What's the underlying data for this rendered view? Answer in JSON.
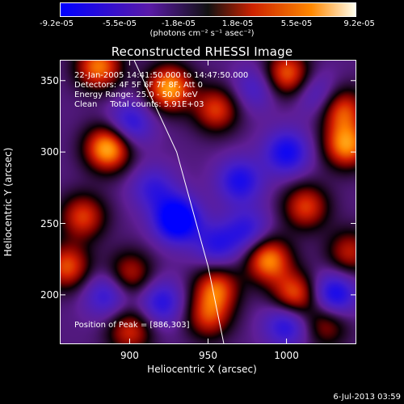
{
  "colorbar": {
    "ticks": [
      "-9.2e-05",
      "-5.5e-05",
      "-1.8e-05",
      "1.8e-05",
      "5.5e-05",
      "9.2e-05"
    ],
    "unit_label": "(photons cm⁻² s⁻¹ asec⁻²)",
    "colors": [
      "#0000ff",
      "#5a1aa8",
      "#111111",
      "#cc2200",
      "#ff8800",
      "#ffffee"
    ]
  },
  "annotations": {
    "time_range": "22-Jan-2005 14:41:50.000 to 14:47:50.000",
    "detectors": "Detectors: 4F 5F 6F 7F 8F, Att 0",
    "energy": "Energy Range: 25.0 - 50.0 keV",
    "clean": "Clean     Total counts: 5.91E+03",
    "peak": "Position of Peak = [886,303]"
  },
  "timestamp": "6-Jul-2013 03:59",
  "chart_data": {
    "type": "heatmap",
    "title": "Reconstructed RHESSI Image",
    "xlabel": "Heliocentric X (arcsec)",
    "ylabel": "Heliocentric Y (arcsec)",
    "xlim": [
      856,
      1044
    ],
    "ylim": [
      166,
      364
    ],
    "xticks": [
      900,
      950,
      1000
    ],
    "yticks": [
      200,
      250,
      300,
      350
    ],
    "zlim": [
      -9.2e-05,
      9.2e-05
    ],
    "limb_line": [
      [
        903,
        364
      ],
      [
        930,
        300
      ],
      [
        950,
        220
      ],
      [
        960,
        166
      ]
    ],
    "peak_position": [
      886,
      303
    ],
    "sources": [
      {
        "x": 886,
        "y": 303,
        "value": 9.2e-05
      },
      {
        "x": 880,
        "y": 360,
        "value": 7.5e-05
      },
      {
        "x": 925,
        "y": 345,
        "value": 8.5e-05
      },
      {
        "x": 955,
        "y": 330,
        "value": 6e-05
      },
      {
        "x": 1000,
        "y": 355,
        "value": 7e-05
      },
      {
        "x": 1038,
        "y": 305,
        "value": 8e-05
      },
      {
        "x": 1035,
        "y": 330,
        "value": 6.5e-05
      },
      {
        "x": 1012,
        "y": 262,
        "value": 6e-05
      },
      {
        "x": 988,
        "y": 225,
        "value": 8e-05
      },
      {
        "x": 1005,
        "y": 200,
        "value": 7e-05
      },
      {
        "x": 955,
        "y": 205,
        "value": 6.5e-05
      },
      {
        "x": 950,
        "y": 185,
        "value": 5.5e-05
      },
      {
        "x": 870,
        "y": 255,
        "value": 6e-05
      },
      {
        "x": 860,
        "y": 220,
        "value": 6.5e-05
      },
      {
        "x": 900,
        "y": 215,
        "value": 5e-05
      },
      {
        "x": 900,
        "y": 175,
        "value": 5.5e-05
      },
      {
        "x": 1040,
        "y": 230,
        "value": 5e-05
      },
      {
        "x": 1025,
        "y": 180,
        "value": 4.5e-05
      },
      {
        "x": 915,
        "y": 275,
        "value": -4e-05
      },
      {
        "x": 930,
        "y": 253,
        "value": -9e-05
      },
      {
        "x": 900,
        "y": 320,
        "value": -5e-05
      },
      {
        "x": 970,
        "y": 280,
        "value": -5.5e-05
      },
      {
        "x": 1000,
        "y": 300,
        "value": -6e-05
      },
      {
        "x": 975,
        "y": 245,
        "value": -4.5e-05
      },
      {
        "x": 955,
        "y": 235,
        "value": -4.5e-05
      },
      {
        "x": 1030,
        "y": 200,
        "value": -6.5e-05
      },
      {
        "x": 920,
        "y": 195,
        "value": -5e-05
      },
      {
        "x": 885,
        "y": 200,
        "value": -4.5e-05
      },
      {
        "x": 1000,
        "y": 180,
        "value": -5.5e-05
      },
      {
        "x": 980,
        "y": 345,
        "value": -3.5e-05
      },
      {
        "x": 1020,
        "y": 340,
        "value": -3.5e-05
      }
    ]
  }
}
